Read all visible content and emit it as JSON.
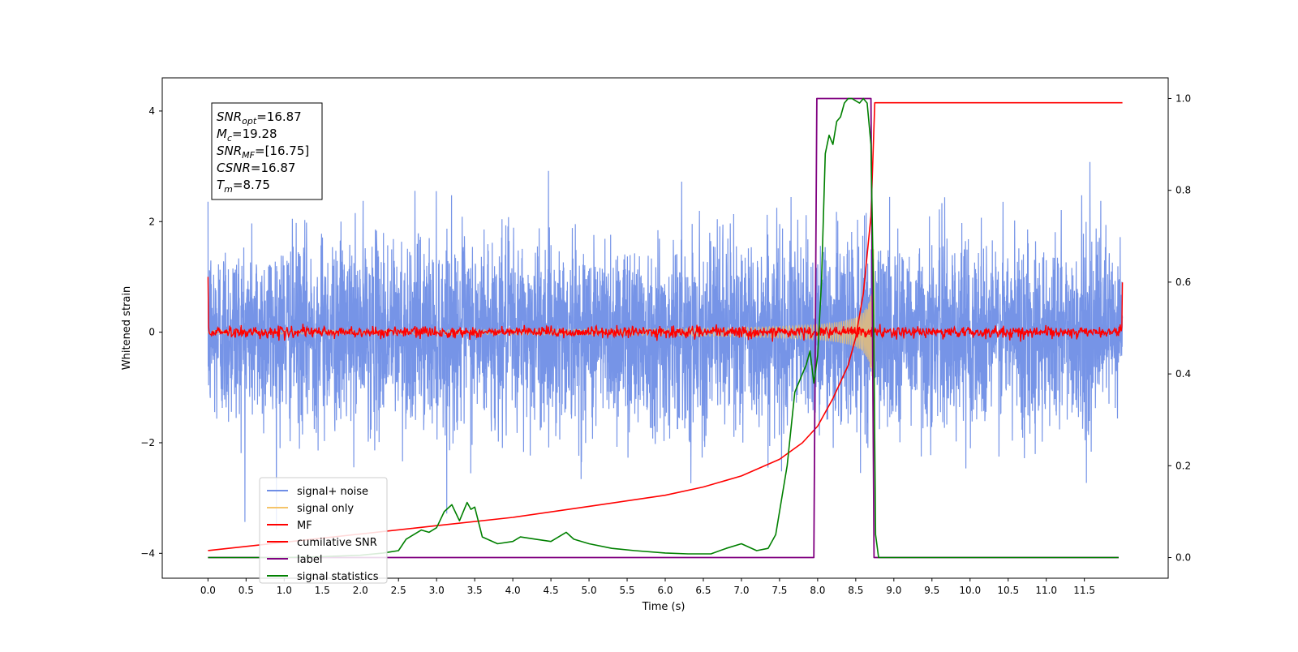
{
  "chart_data": {
    "type": "line",
    "title": "",
    "xlabel": "Time (s)",
    "ylabel": "Whitened strain",
    "xlim": [
      -0.6,
      12.6
    ],
    "ylim": [
      -4.45,
      4.6
    ],
    "y2lim": [
      -0.045,
      1.045
    ],
    "grid": false,
    "legend_position": "lower-left",
    "x_ticks": [
      "0.0",
      "0.5",
      "1.0",
      "1.5",
      "2.0",
      "2.5",
      "3.0",
      "3.5",
      "4.0",
      "4.5",
      "5.0",
      "5.5",
      "6.0",
      "6.5",
      "7.0",
      "7.5",
      "8.0",
      "8.5",
      "9.0",
      "9.5",
      "10.0",
      "10.5",
      "11.0",
      "11.5"
    ],
    "y_ticks": [
      "4",
      "2",
      "0",
      "−2",
      "−4"
    ],
    "y2_ticks": [
      "1.0",
      "0.8",
      "0.6",
      "0.4",
      "0.2",
      "0.0"
    ],
    "annotation": {
      "lines": [
        {
          "sym": "SNR",
          "sub": "opt",
          "val": "=16.87"
        },
        {
          "sym": "M",
          "sub": "c",
          "val": "=19.28"
        },
        {
          "sym": "SNR",
          "sub": "MF",
          "val": "=[16.75]"
        },
        {
          "sym": "CSNR",
          "sub": "",
          "val": "=16.87"
        },
        {
          "sym": "T",
          "sub": "m",
          "val": "=8.75"
        }
      ]
    },
    "colors": {
      "signal_noise": "#6f8ee6",
      "signal_only": "#f5c46a",
      "mf": "#ff0000",
      "cumulative_snr": "#ff0000",
      "label": "#800080",
      "signal_statistics": "#008000"
    },
    "series": [
      {
        "name": "signal+ noise",
        "axis": "left",
        "kind": "noise",
        "x_range": [
          0.0,
          12.0
        ],
        "sigma": 0.85,
        "max_abs": 4.0
      },
      {
        "name": "signal only",
        "axis": "left",
        "kind": "chirp",
        "x_range": [
          0.0,
          8.75
        ],
        "peak_amplitude": 2.5
      },
      {
        "name": "MF",
        "axis": "left",
        "kind": "mf",
        "x_range": [
          0.0,
          12.0
        ],
        "edge_values": [
          1.0,
          0.9
        ]
      },
      {
        "name": "cumilative SNR",
        "axis": "left",
        "x": [
          0.0,
          1.0,
          2.0,
          3.0,
          4.0,
          5.0,
          6.0,
          6.5,
          7.0,
          7.5,
          7.8,
          8.0,
          8.2,
          8.4,
          8.5,
          8.6,
          8.7,
          8.75,
          12.0
        ],
        "y": [
          -3.95,
          -3.8,
          -3.65,
          -3.5,
          -3.35,
          -3.15,
          -2.95,
          -2.8,
          -2.6,
          -2.3,
          -2.0,
          -1.7,
          -1.2,
          -0.6,
          -0.1,
          0.7,
          2.1,
          4.15,
          4.15
        ]
      },
      {
        "name": "label",
        "axis": "right",
        "x": [
          0.0,
          7.95,
          7.99,
          8.7,
          8.74,
          11.95
        ],
        "y": [
          0.0,
          0.0,
          1.0,
          1.0,
          0.0,
          0.0
        ]
      },
      {
        "name": "signal statistics",
        "axis": "right",
        "x": [
          0.0,
          0.5,
          1.0,
          1.5,
          2.0,
          2.3,
          2.5,
          2.6,
          2.8,
          2.9,
          3.0,
          3.1,
          3.2,
          3.3,
          3.4,
          3.45,
          3.5,
          3.6,
          3.8,
          4.0,
          4.1,
          4.3,
          4.5,
          4.7,
          4.8,
          5.0,
          5.3,
          5.6,
          6.0,
          6.3,
          6.6,
          6.8,
          7.0,
          7.2,
          7.35,
          7.45,
          7.5,
          7.6,
          7.7,
          7.75,
          7.8,
          7.85,
          7.9,
          7.95,
          8.0,
          8.05,
          8.1,
          8.15,
          8.2,
          8.25,
          8.3,
          8.35,
          8.4,
          8.45,
          8.5,
          8.55,
          8.6,
          8.65,
          8.7,
          8.73,
          8.76,
          8.8,
          8.9,
          11.95
        ],
        "y": [
          0.0,
          0.0,
          0.0,
          0.002,
          0.005,
          0.01,
          0.015,
          0.04,
          0.06,
          0.055,
          0.065,
          0.1,
          0.115,
          0.08,
          0.12,
          0.105,
          0.11,
          0.045,
          0.03,
          0.035,
          0.045,
          0.04,
          0.035,
          0.055,
          0.04,
          0.03,
          0.02,
          0.015,
          0.01,
          0.008,
          0.008,
          0.02,
          0.03,
          0.015,
          0.02,
          0.05,
          0.1,
          0.2,
          0.36,
          0.38,
          0.4,
          0.42,
          0.45,
          0.38,
          0.44,
          0.6,
          0.88,
          0.92,
          0.9,
          0.95,
          0.96,
          0.99,
          1.0,
          1.0,
          0.995,
          0.99,
          1.0,
          0.99,
          0.9,
          0.6,
          0.05,
          0.0,
          0.0,
          0.0
        ]
      }
    ]
  }
}
